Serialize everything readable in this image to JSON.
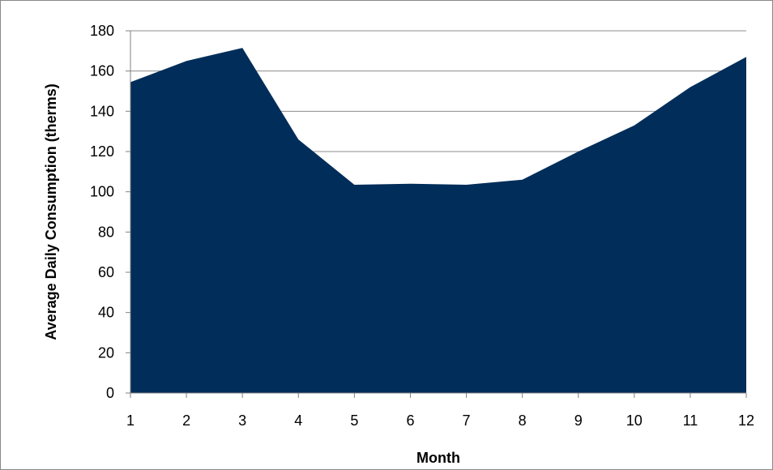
{
  "chart_data": {
    "type": "area",
    "title": "",
    "xlabel": "Month",
    "ylabel": "Average Daily Consumption (therms)",
    "x": [
      1,
      2,
      3,
      4,
      5,
      6,
      7,
      8,
      9,
      10,
      11,
      12
    ],
    "x_tick_labels": [
      "1",
      "2",
      "3",
      "4",
      "5",
      "6",
      "7",
      "8",
      "9",
      "10",
      "11",
      "12"
    ],
    "y_ticks": [
      0,
      20,
      40,
      60,
      80,
      100,
      120,
      140,
      160,
      180
    ],
    "y_tick_labels": [
      "0",
      "20",
      "40",
      "60",
      "80",
      "100",
      "120",
      "140",
      "160",
      "180"
    ],
    "ylim": [
      0,
      180
    ],
    "xlim": [
      1,
      12
    ],
    "grid": true,
    "legend": "none",
    "series": [
      {
        "values": [
          154.5,
          165,
          171.5,
          126,
          103.5,
          104,
          103.5,
          106,
          120,
          133,
          152,
          167
        ],
        "color": "#002D5A"
      }
    ],
    "gridline_color": "#8C8C8C",
    "axis_color": "#808080"
  }
}
